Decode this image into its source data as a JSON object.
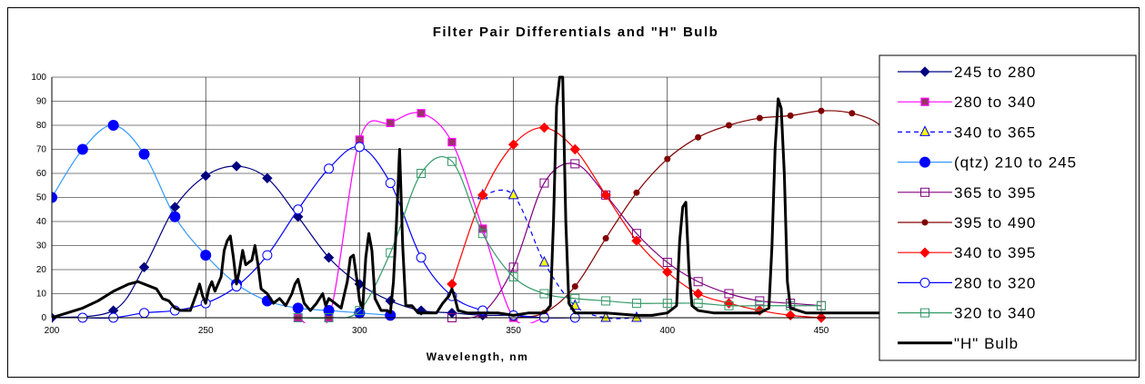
{
  "chart_data": {
    "type": "line",
    "title": "Filter Pair Differentials and \"H\" Bulb",
    "xlabel": "Wavelength, nm",
    "ylabel": "",
    "xlim": [
      200,
      480
    ],
    "ylim": [
      0,
      100
    ],
    "xticks": [
      200,
      250,
      300,
      350,
      400,
      450
    ],
    "yticks": [
      0,
      10,
      20,
      30,
      40,
      50,
      60,
      70,
      80,
      90,
      100
    ],
    "grid": true,
    "legend_position": "right",
    "series": [
      {
        "name": "245 to 280",
        "color": "#000080",
        "marker": "diamond",
        "dash": false,
        "points": [
          [
            200,
            0
          ],
          [
            220,
            3
          ],
          [
            230,
            21
          ],
          [
            240,
            46
          ],
          [
            250,
            59
          ],
          [
            260,
            63
          ],
          [
            270,
            58
          ],
          [
            280,
            42
          ],
          [
            290,
            25
          ],
          [
            300,
            14
          ],
          [
            310,
            7
          ],
          [
            320,
            3
          ],
          [
            330,
            2
          ],
          [
            340,
            1
          ],
          [
            350,
            1
          ],
          [
            360,
            0
          ],
          [
            370,
            0
          ]
        ]
      },
      {
        "name": "280 to 340",
        "color": "#FF00FF",
        "marker": "square-filled",
        "dash": false,
        "points": [
          [
            280,
            0
          ],
          [
            290,
            0
          ],
          [
            300,
            74
          ],
          [
            310,
            81
          ],
          [
            320,
            85
          ],
          [
            330,
            73
          ],
          [
            340,
            37
          ],
          [
            350,
            0
          ],
          [
            360,
            0
          ]
        ]
      },
      {
        "name": "340 to 365",
        "color": "#0000FF",
        "marker": "triangle",
        "dash": true,
        "points": [
          [
            340,
            51
          ],
          [
            350,
            51
          ],
          [
            360,
            23
          ],
          [
            370,
            5
          ],
          [
            380,
            0
          ],
          [
            390,
            0
          ]
        ]
      },
      {
        "name": "(qtz) 210 to 245",
        "color": "#3399FF",
        "marker": "circle-filled",
        "dash": false,
        "points": [
          [
            200,
            50
          ],
          [
            210,
            70
          ],
          [
            220,
            80
          ],
          [
            230,
            68
          ],
          [
            240,
            42
          ],
          [
            250,
            26
          ],
          [
            260,
            14
          ],
          [
            270,
            7
          ],
          [
            280,
            4
          ],
          [
            290,
            3
          ],
          [
            300,
            2
          ],
          [
            310,
            1
          ]
        ]
      },
      {
        "name": "365 to 395",
        "color": "#800080",
        "marker": "square-open",
        "dash": false,
        "points": [
          [
            330,
            0
          ],
          [
            340,
            2
          ],
          [
            350,
            21
          ],
          [
            360,
            56
          ],
          [
            370,
            64
          ],
          [
            380,
            51
          ],
          [
            390,
            35
          ],
          [
            400,
            23
          ],
          [
            410,
            15
          ],
          [
            420,
            10
          ],
          [
            430,
            7
          ],
          [
            440,
            6
          ],
          [
            450,
            5
          ]
        ]
      },
      {
        "name": "395 to 490",
        "color": "#800000",
        "marker": "circle-small",
        "dash": false,
        "points": [
          [
            350,
            0
          ],
          [
            360,
            2
          ],
          [
            370,
            13
          ],
          [
            380,
            33
          ],
          [
            390,
            52
          ],
          [
            400,
            66
          ],
          [
            410,
            75
          ],
          [
            420,
            80
          ],
          [
            430,
            83
          ],
          [
            440,
            84
          ],
          [
            450,
            86
          ],
          [
            460,
            85
          ],
          [
            470,
            79
          ],
          [
            480,
            60
          ]
        ]
      },
      {
        "name": "340 to 395",
        "color": "#FF0000",
        "marker": "diamond-red",
        "dash": false,
        "points": [
          [
            330,
            14
          ],
          [
            340,
            51
          ],
          [
            350,
            72
          ],
          [
            360,
            79
          ],
          [
            370,
            70
          ],
          [
            380,
            51
          ],
          [
            390,
            32
          ],
          [
            400,
            19
          ],
          [
            410,
            10
          ],
          [
            420,
            6
          ],
          [
            430,
            3
          ],
          [
            440,
            1
          ],
          [
            450,
            0
          ]
        ]
      },
      {
        "name": "280 to 320",
        "color": "#0000FF",
        "marker": "circle-open",
        "dash": false,
        "points": [
          [
            210,
            0
          ],
          [
            220,
            0
          ],
          [
            230,
            2
          ],
          [
            240,
            3
          ],
          [
            250,
            6
          ],
          [
            260,
            13
          ],
          [
            270,
            26
          ],
          [
            280,
            45
          ],
          [
            290,
            62
          ],
          [
            300,
            71
          ],
          [
            310,
            56
          ],
          [
            320,
            25
          ],
          [
            330,
            9
          ],
          [
            340,
            3
          ],
          [
            350,
            1
          ],
          [
            360,
            0
          ],
          [
            370,
            0
          ]
        ]
      },
      {
        "name": "320 to 340",
        "color": "#339966",
        "marker": "square-open-green",
        "dash": false,
        "points": [
          [
            280,
            0
          ],
          [
            290,
            0
          ],
          [
            300,
            3
          ],
          [
            310,
            27
          ],
          [
            320,
            60
          ],
          [
            330,
            65
          ],
          [
            340,
            35
          ],
          [
            350,
            17
          ],
          [
            360,
            10
          ],
          [
            370,
            8
          ],
          [
            380,
            7
          ],
          [
            390,
            6
          ],
          [
            400,
            6
          ],
          [
            410,
            6
          ],
          [
            420,
            5
          ],
          [
            430,
            5
          ],
          [
            440,
            5
          ],
          [
            450,
            5
          ]
        ]
      },
      {
        "name": "\"H\" Bulb",
        "color": "#000000",
        "marker": "none",
        "dash": false,
        "width": 3,
        "points": [
          [
            200,
            0
          ],
          [
            205,
            2
          ],
          [
            210,
            4
          ],
          [
            215,
            7
          ],
          [
            220,
            11
          ],
          [
            225,
            14
          ],
          [
            228,
            15
          ],
          [
            232,
            13
          ],
          [
            234,
            12
          ],
          [
            236,
            8
          ],
          [
            238,
            7
          ],
          [
            240,
            4
          ],
          [
            242,
            3
          ],
          [
            245,
            3
          ],
          [
            247,
            10
          ],
          [
            248,
            14
          ],
          [
            249,
            9
          ],
          [
            250,
            6
          ],
          [
            251,
            12
          ],
          [
            252,
            15
          ],
          [
            253,
            11
          ],
          [
            255,
            17
          ],
          [
            256,
            28
          ],
          [
            257,
            32
          ],
          [
            258,
            34
          ],
          [
            259,
            25
          ],
          [
            260,
            14
          ],
          [
            261,
            20
          ],
          [
            262,
            28
          ],
          [
            263,
            22
          ],
          [
            265,
            24
          ],
          [
            266,
            30
          ],
          [
            267,
            22
          ],
          [
            268,
            12
          ],
          [
            270,
            10
          ],
          [
            272,
            6
          ],
          [
            274,
            8
          ],
          [
            276,
            5
          ],
          [
            278,
            10
          ],
          [
            279,
            14
          ],
          [
            280,
            16
          ],
          [
            281,
            11
          ],
          [
            282,
            6
          ],
          [
            284,
            3
          ],
          [
            286,
            6
          ],
          [
            288,
            10
          ],
          [
            289,
            5
          ],
          [
            290,
            8
          ],
          [
            292,
            6
          ],
          [
            294,
            4
          ],
          [
            296,
            15
          ],
          [
            297,
            25
          ],
          [
            298,
            26
          ],
          [
            299,
            17
          ],
          [
            300,
            7
          ],
          [
            301,
            4
          ],
          [
            302,
            25
          ],
          [
            303,
            35
          ],
          [
            304,
            28
          ],
          [
            305,
            8
          ],
          [
            307,
            3
          ],
          [
            309,
            3
          ],
          [
            310,
            2
          ],
          [
            311,
            15
          ],
          [
            312,
            40
          ],
          [
            313,
            70
          ],
          [
            314,
            30
          ],
          [
            315,
            5
          ],
          [
            317,
            5
          ],
          [
            319,
            2
          ],
          [
            322,
            2
          ],
          [
            325,
            2
          ],
          [
            327,
            6
          ],
          [
            329,
            9
          ],
          [
            330,
            12
          ],
          [
            331,
            8
          ],
          [
            332,
            3
          ],
          [
            335,
            2
          ],
          [
            340,
            2
          ],
          [
            345,
            2
          ],
          [
            350,
            1
          ],
          [
            355,
            2
          ],
          [
            360,
            2
          ],
          [
            362,
            5
          ],
          [
            363,
            40
          ],
          [
            364,
            88
          ],
          [
            365,
            100
          ],
          [
            366,
            100
          ],
          [
            367,
            40
          ],
          [
            368,
            6
          ],
          [
            370,
            2
          ],
          [
            380,
            2
          ],
          [
            390,
            1
          ],
          [
            395,
            1
          ],
          [
            400,
            2
          ],
          [
            403,
            5
          ],
          [
            404,
            32
          ],
          [
            405,
            46
          ],
          [
            406,
            48
          ],
          [
            407,
            20
          ],
          [
            408,
            5
          ],
          [
            410,
            3
          ],
          [
            415,
            2
          ],
          [
            420,
            2
          ],
          [
            425,
            2
          ],
          [
            430,
            2
          ],
          [
            433,
            4
          ],
          [
            434,
            30
          ],
          [
            435,
            70
          ],
          [
            436,
            91
          ],
          [
            437,
            87
          ],
          [
            438,
            60
          ],
          [
            439,
            15
          ],
          [
            440,
            4
          ],
          [
            445,
            2
          ],
          [
            455,
            2
          ],
          [
            470,
            2
          ],
          [
            480,
            2
          ]
        ]
      }
    ]
  }
}
